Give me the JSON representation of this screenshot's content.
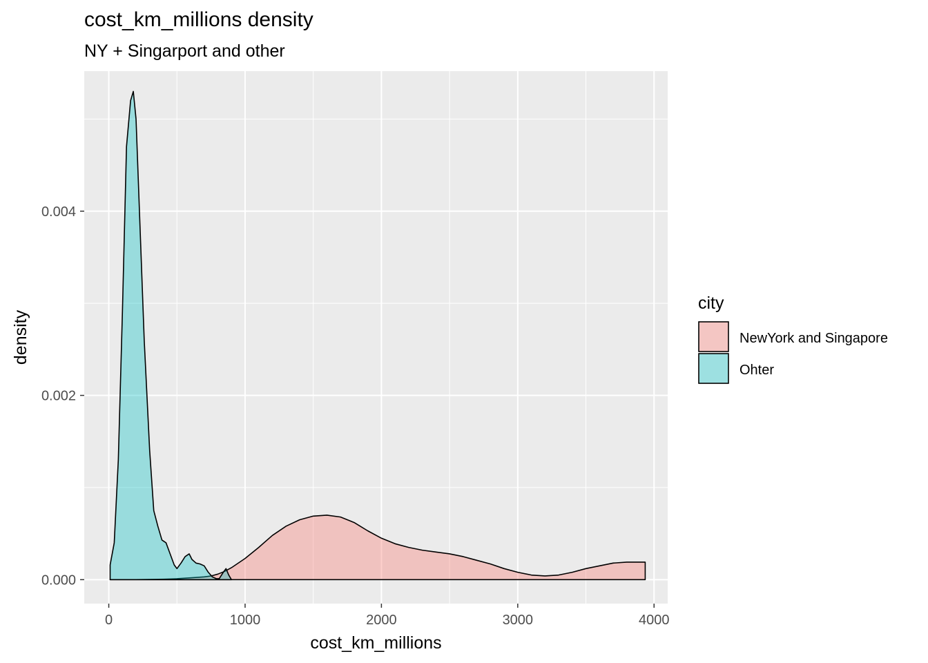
{
  "chart_data": {
    "type": "area",
    "title": "cost_km_millions density",
    "subtitle": "NY + Singarport and other",
    "xlabel": "cost_km_millions",
    "ylabel": "density",
    "xlim": [
      -180,
      4100
    ],
    "ylim": [
      -0.00026,
      0.00552
    ],
    "x_ticks": [
      0,
      1000,
      2000,
      3000,
      4000
    ],
    "x_tick_labels": [
      "0",
      "1000",
      "2000",
      "3000",
      "4000"
    ],
    "y_ticks": [
      0.0,
      0.002,
      0.004
    ],
    "y_tick_labels": [
      "0.000",
      "0.002",
      "0.004"
    ],
    "grid": true,
    "legend": {
      "title": "city",
      "position": "right",
      "entries": [
        "NewYork and Singapore",
        "Ohter"
      ]
    },
    "series": [
      {
        "name": "NewYork and Singapore",
        "color": "#F8766D",
        "x": [
          10,
          200,
          400,
          500,
          600,
          700,
          750,
          800,
          850,
          900,
          1000,
          1100,
          1200,
          1300,
          1400,
          1500,
          1600,
          1700,
          1800,
          1900,
          2000,
          2100,
          2200,
          2300,
          2400,
          2500,
          2600,
          2700,
          2800,
          2900,
          3000,
          3100,
          3200,
          3300,
          3400,
          3500,
          3600,
          3700,
          3800,
          3935
        ],
        "y": [
          0.0,
          0.0,
          5e-06,
          1e-05,
          2e-05,
          3e-05,
          4e-05,
          6e-05,
          9e-05,
          0.00013,
          0.00023,
          0.00035,
          0.00048,
          0.00058,
          0.00065,
          0.00069,
          0.0007,
          0.00068,
          0.00062,
          0.00053,
          0.00045,
          0.00039,
          0.00035,
          0.00032,
          0.0003,
          0.00028,
          0.00025,
          0.00021,
          0.00017,
          0.00012,
          8e-05,
          5e-05,
          4e-05,
          5e-05,
          8e-05,
          0.00012,
          0.00015,
          0.00018,
          0.00019,
          0.00019
        ]
      },
      {
        "name": "Ohter",
        "color": "#00BFC4",
        "x": [
          10,
          40,
          70,
          100,
          130,
          160,
          180,
          200,
          230,
          260,
          300,
          330,
          360,
          390,
          420,
          450,
          480,
          500,
          530,
          560,
          590,
          610,
          640,
          670,
          700,
          730,
          760,
          790,
          810,
          840,
          860,
          880,
          900
        ],
        "y": [
          0.00016,
          0.0004,
          0.0013,
          0.0029,
          0.0047,
          0.0052,
          0.0053,
          0.005,
          0.0038,
          0.0026,
          0.0014,
          0.00075,
          0.00058,
          0.00043,
          0.0004,
          0.00028,
          0.00016,
          0.00012,
          0.00018,
          0.00025,
          0.00028,
          0.00022,
          0.00018,
          0.00017,
          0.00015,
          8e-05,
          3e-05,
          1e-05,
          1e-05,
          8e-05,
          0.00012,
          5e-05,
          0.0
        ]
      }
    ]
  }
}
